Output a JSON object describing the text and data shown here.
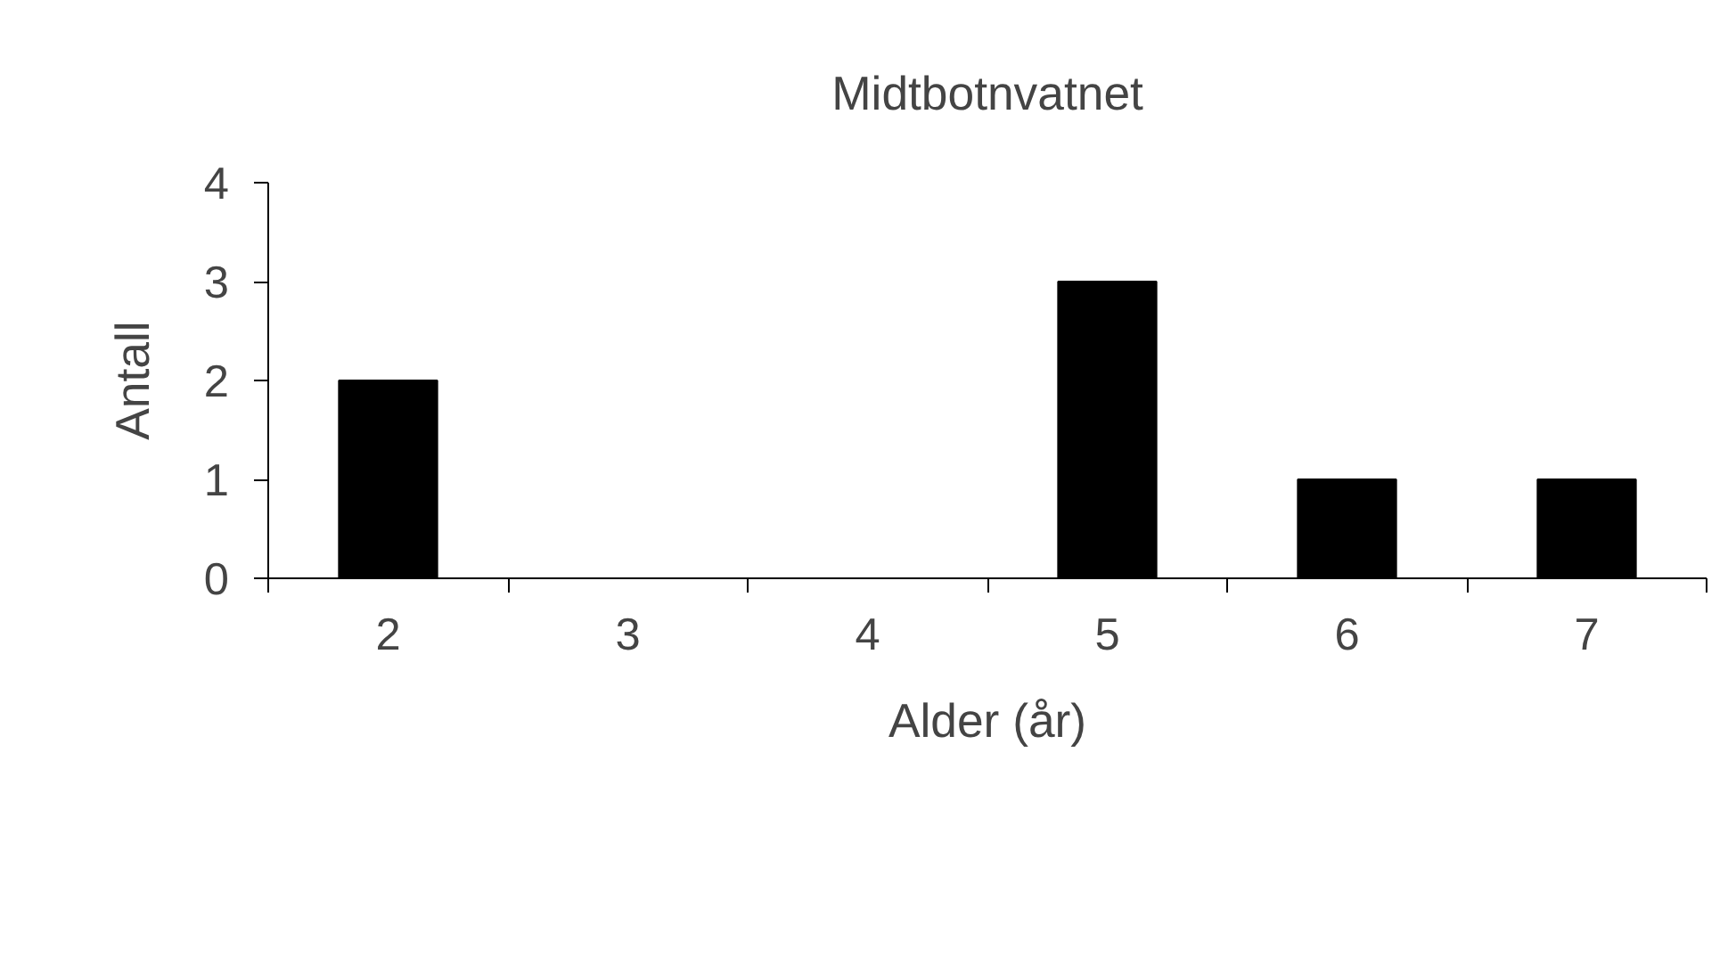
{
  "chart_data": {
    "type": "bar",
    "title": "Midtbotnvatnet",
    "xlabel": "Alder (år)",
    "ylabel": "Antall",
    "categories": [
      "2",
      "3",
      "4",
      "5",
      "6",
      "7"
    ],
    "values": [
      2,
      0,
      0,
      3,
      1,
      1
    ],
    "color": "#000000",
    "ylim": [
      0,
      4
    ],
    "yticks": [
      0,
      1,
      2,
      3,
      4
    ],
    "grid": false
  }
}
